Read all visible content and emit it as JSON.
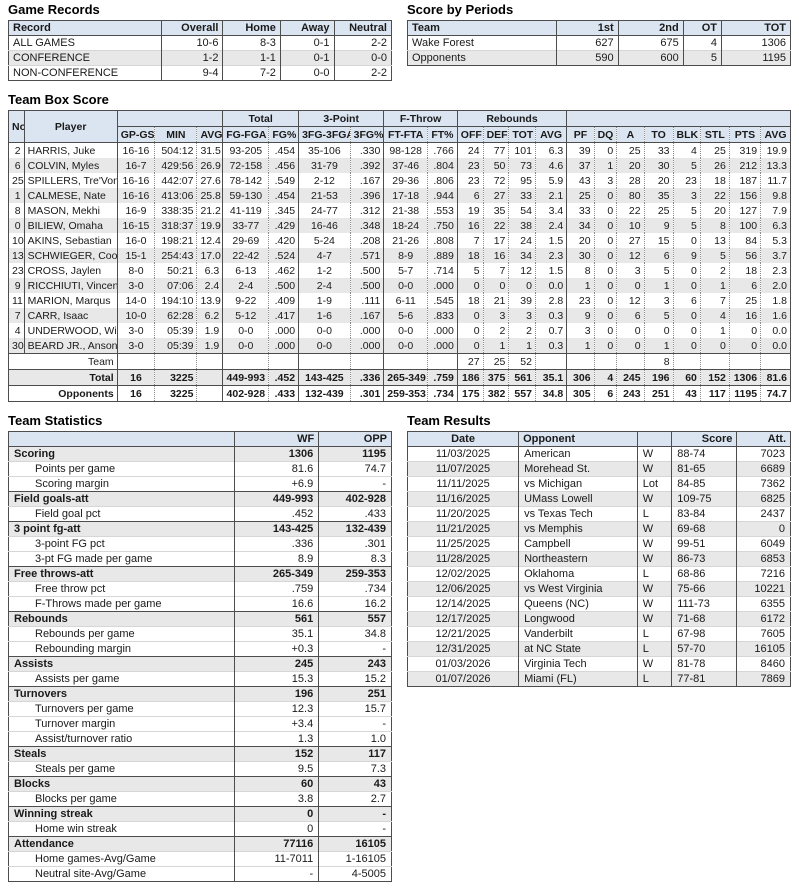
{
  "colors": {
    "header_bg": "#dbe5f1",
    "alt_row": "#e8e8e8",
    "border": "#4d4d4d"
  },
  "game_records": {
    "title": "Game Records",
    "columns": [
      "Record",
      "Overall",
      "Home",
      "Away",
      "Neutral"
    ],
    "rows": [
      [
        "ALL GAMES",
        "10-6",
        "8-3",
        "0-1",
        "2-2"
      ],
      [
        "CONFERENCE",
        "1-2",
        "1-1",
        "0-1",
        "0-0"
      ],
      [
        "NON-CONFERENCE",
        "9-4",
        "7-2",
        "0-0",
        "2-2"
      ]
    ]
  },
  "score_by_periods": {
    "title": "Score by Periods",
    "columns": [
      "Team",
      "1st",
      "2nd",
      "OT",
      "TOT"
    ],
    "rows": [
      [
        "Wake Forest",
        "627",
        "675",
        "4",
        "1306"
      ],
      [
        "Opponents",
        "590",
        "600",
        "5",
        "1195"
      ]
    ]
  },
  "box_score": {
    "title": "Team Box Score",
    "groups": {
      "total": "Total",
      "three_point": "3-Point",
      "f_throw": "F-Throw",
      "rebounds": "Rebounds"
    },
    "columns": [
      "No.",
      "Player",
      "GP-GS",
      "MIN",
      "AVG",
      "FG-FGA",
      "FG%",
      "3FG-3FGA",
      "3FG%",
      "FT-FTA",
      "FT%",
      "OFF",
      "DEF",
      "TOT",
      "AVG",
      "PF",
      "DQ",
      "A",
      "TO",
      "BLK",
      "STL",
      "PTS",
      "AVG"
    ],
    "rows": [
      [
        "2",
        "HARRIS, Juke",
        "16-16",
        "504:12",
        "31.5",
        "93-205",
        ".454",
        "35-106",
        ".330",
        "98-128",
        ".766",
        "24",
        "77",
        "101",
        "6.3",
        "39",
        "0",
        "25",
        "33",
        "4",
        "25",
        "319",
        "19.9"
      ],
      [
        "6",
        "COLVIN, Myles",
        "16-7",
        "429:56",
        "26.9",
        "72-158",
        ".456",
        "31-79",
        ".392",
        "37-46",
        ".804",
        "23",
        "50",
        "73",
        "4.6",
        "37",
        "1",
        "20",
        "30",
        "5",
        "26",
        "212",
        "13.3"
      ],
      [
        "25",
        "SPILLERS, Tre'Von",
        "16-16",
        "442:07",
        "27.6",
        "78-142",
        ".549",
        "2-12",
        ".167",
        "29-36",
        ".806",
        "23",
        "72",
        "95",
        "5.9",
        "43",
        "3",
        "28",
        "20",
        "23",
        "18",
        "187",
        "11.7"
      ],
      [
        "1",
        "CALMESE, Nate",
        "16-16",
        "413:06",
        "25.8",
        "59-130",
        ".454",
        "21-53",
        ".396",
        "17-18",
        ".944",
        "6",
        "27",
        "33",
        "2.1",
        "25",
        "0",
        "80",
        "35",
        "3",
        "22",
        "156",
        "9.8"
      ],
      [
        "8",
        "MASON, Mekhi",
        "16-9",
        "338:35",
        "21.2",
        "41-119",
        ".345",
        "24-77",
        ".312",
        "21-38",
        ".553",
        "19",
        "35",
        "54",
        "3.4",
        "33",
        "0",
        "22",
        "25",
        "5",
        "20",
        "127",
        "7.9"
      ],
      [
        "0",
        "BILIEW, Omaha",
        "16-15",
        "318:37",
        "19.9",
        "33-77",
        ".429",
        "16-46",
        ".348",
        "18-24",
        ".750",
        "16",
        "22",
        "38",
        "2.4",
        "34",
        "0",
        "10",
        "9",
        "5",
        "8",
        "100",
        "6.3"
      ],
      [
        "10",
        "AKINS, Sebastian",
        "16-0",
        "198:21",
        "12.4",
        "29-69",
        ".420",
        "5-24",
        ".208",
        "21-26",
        ".808",
        "7",
        "17",
        "24",
        "1.5",
        "20",
        "0",
        "27",
        "15",
        "0",
        "13",
        "84",
        "5.3"
      ],
      [
        "13",
        "SCHWIEGER, Cooper",
        "15-1",
        "254:43",
        "17.0",
        "22-42",
        ".524",
        "4-7",
        ".571",
        "8-9",
        ".889",
        "18",
        "16",
        "34",
        "2.3",
        "30",
        "0",
        "12",
        "6",
        "9",
        "5",
        "56",
        "3.7"
      ],
      [
        "23",
        "CROSS, Jaylen",
        "8-0",
        "50:21",
        "6.3",
        "6-13",
        ".462",
        "1-2",
        ".500",
        "5-7",
        ".714",
        "5",
        "7",
        "12",
        "1.5",
        "8",
        "0",
        "3",
        "5",
        "0",
        "2",
        "18",
        "2.3"
      ],
      [
        "9",
        "RICCHIUTI, Vincent",
        "3-0",
        "07:06",
        "2.4",
        "2-4",
        ".500",
        "2-4",
        ".500",
        "0-0",
        ".000",
        "0",
        "0",
        "0",
        "0.0",
        "1",
        "0",
        "0",
        "1",
        "0",
        "1",
        "6",
        "2.0"
      ],
      [
        "11",
        "MARION, Marqus",
        "14-0",
        "194:10",
        "13.9",
        "9-22",
        ".409",
        "1-9",
        ".111",
        "6-11",
        ".545",
        "18",
        "21",
        "39",
        "2.8",
        "23",
        "0",
        "12",
        "3",
        "6",
        "7",
        "25",
        "1.8"
      ],
      [
        "7",
        "CARR, Isaac",
        "10-0",
        "62:28",
        "6.2",
        "5-12",
        ".417",
        "1-6",
        ".167",
        "5-6",
        ".833",
        "0",
        "3",
        "3",
        "0.3",
        "9",
        "0",
        "6",
        "5",
        "0",
        "4",
        "16",
        "1.6"
      ],
      [
        "4",
        "UNDERWOOD, Will",
        "3-0",
        "05:39",
        "1.9",
        "0-0",
        ".000",
        "0-0",
        ".000",
        "0-0",
        ".000",
        "0",
        "2",
        "2",
        "0.7",
        "3",
        "0",
        "0",
        "0",
        "0",
        "1",
        "0",
        "0.0"
      ],
      [
        "30",
        "BEARD JR., Anson",
        "3-0",
        "05:39",
        "1.9",
        "0-0",
        ".000",
        "0-0",
        ".000",
        "0-0",
        ".000",
        "0",
        "1",
        "1",
        "0.3",
        "1",
        "0",
        "0",
        "1",
        "0",
        "0",
        "0",
        "0.0"
      ],
      {
        "cells": [
          "Team",
          "",
          "",
          "",
          "",
          "",
          "",
          "",
          "",
          "",
          "27",
          "25",
          "52",
          "",
          "",
          "",
          "",
          "8",
          "",
          "",
          "",
          ""
        ],
        "cls": "sep",
        "colspan": 2
      },
      {
        "cells": [
          "Total",
          "16",
          "3225",
          "",
          "449-993",
          ".452",
          "143-425",
          ".336",
          "265-349",
          ".759",
          "186",
          "375",
          "561",
          "35.1",
          "306",
          "4",
          "245",
          "196",
          "60",
          "152",
          "1306",
          "81.6"
        ],
        "cls": "sep total",
        "colspan": 2
      },
      {
        "cells": [
          "Opponents",
          "16",
          "3225",
          "",
          "402-928",
          ".433",
          "132-439",
          ".301",
          "259-353",
          ".734",
          "175",
          "382",
          "557",
          "34.8",
          "305",
          "6",
          "243",
          "251",
          "43",
          "117",
          "1195",
          "74.7"
        ],
        "cls": "sep total",
        "colspan": 2
      }
    ]
  },
  "team_statistics": {
    "title": "Team Statistics",
    "columns": [
      "",
      "WF",
      "OPP"
    ],
    "rows": [
      {
        "cells": [
          "Scoring",
          "1306",
          "1195"
        ],
        "cls": "cat"
      },
      {
        "cells": [
          "Points per game",
          "81.6",
          "74.7"
        ],
        "cls": "sub"
      },
      {
        "cells": [
          "Scoring margin",
          "+6.9",
          "-"
        ],
        "cls": "sub"
      },
      {
        "cells": [
          "Field goals-att",
          "449-993",
          "402-928"
        ],
        "cls": "cat"
      },
      {
        "cells": [
          "Field goal pct",
          ".452",
          ".433"
        ],
        "cls": "sub"
      },
      {
        "cells": [
          "3 point fg-att",
          "143-425",
          "132-439"
        ],
        "cls": "cat"
      },
      {
        "cells": [
          "3-point FG pct",
          ".336",
          ".301"
        ],
        "cls": "sub"
      },
      {
        "cells": [
          "3-pt FG made per game",
          "8.9",
          "8.3"
        ],
        "cls": "sub"
      },
      {
        "cells": [
          "Free throws-att",
          "265-349",
          "259-353"
        ],
        "cls": "cat"
      },
      {
        "cells": [
          "Free throw pct",
          ".759",
          ".734"
        ],
        "cls": "sub"
      },
      {
        "cells": [
          "F-Throws made per game",
          "16.6",
          "16.2"
        ],
        "cls": "sub"
      },
      {
        "cells": [
          "Rebounds",
          "561",
          "557"
        ],
        "cls": "cat"
      },
      {
        "cells": [
          "Rebounds per game",
          "35.1",
          "34.8"
        ],
        "cls": "sub"
      },
      {
        "cells": [
          "Rebounding margin",
          "+0.3",
          "-"
        ],
        "cls": "sub"
      },
      {
        "cells": [
          "Assists",
          "245",
          "243"
        ],
        "cls": "cat"
      },
      {
        "cells": [
          "Assists per game",
          "15.3",
          "15.2"
        ],
        "cls": "sub"
      },
      {
        "cells": [
          "Turnovers",
          "196",
          "251"
        ],
        "cls": "cat"
      },
      {
        "cells": [
          "Turnovers per game",
          "12.3",
          "15.7"
        ],
        "cls": "sub"
      },
      {
        "cells": [
          "Turnover margin",
          "+3.4",
          "-"
        ],
        "cls": "sub"
      },
      {
        "cells": [
          "Assist/turnover ratio",
          "1.3",
          "1.0"
        ],
        "cls": "sub"
      },
      {
        "cells": [
          "Steals",
          "152",
          "117"
        ],
        "cls": "cat"
      },
      {
        "cells": [
          "Steals per game",
          "9.5",
          "7.3"
        ],
        "cls": "sub"
      },
      {
        "cells": [
          "Blocks",
          "60",
          "43"
        ],
        "cls": "cat"
      },
      {
        "cells": [
          "Blocks per game",
          "3.8",
          "2.7"
        ],
        "cls": "sub"
      },
      {
        "cells": [
          "Winning streak",
          "0",
          "-"
        ],
        "cls": "cat"
      },
      {
        "cells": [
          "Home win streak",
          "0",
          "-"
        ],
        "cls": "sub"
      },
      {
        "cells": [
          "Attendance",
          "77116",
          "16105"
        ],
        "cls": "cat"
      },
      {
        "cells": [
          "Home games-Avg/Game",
          "11-7011",
          "1-16105"
        ],
        "cls": "sub"
      },
      {
        "cells": [
          "Neutral site-Avg/Game",
          "-",
          "4-5005"
        ],
        "cls": "sub"
      }
    ]
  },
  "team_results": {
    "title": "Team Results",
    "columns": [
      "Date",
      "Opponent",
      "",
      "Score",
      "Att."
    ],
    "rows": [
      [
        "11/03/2025",
        "American",
        "W",
        "88-74",
        "7023"
      ],
      [
        "11/07/2025",
        "Morehead St.",
        "W",
        "81-65",
        "6689"
      ],
      [
        "11/11/2025",
        "vs Michigan",
        "Lot",
        "84-85",
        "7362"
      ],
      [
        "11/16/2025",
        "UMass Lowell",
        "W",
        "109-75",
        "6825"
      ],
      [
        "11/20/2025",
        "vs Texas Tech",
        "L",
        "83-84",
        "2437"
      ],
      [
        "11/21/2025",
        "vs Memphis",
        "W",
        "69-68",
        "0"
      ],
      [
        "11/25/2025",
        "Campbell",
        "W",
        "99-51",
        "6049"
      ],
      [
        "11/28/2025",
        "Northeastern",
        "W",
        "86-73",
        "6853"
      ],
      [
        "12/02/2025",
        "Oklahoma",
        "L",
        "68-86",
        "7216"
      ],
      [
        "12/06/2025",
        "vs West Virginia",
        "W",
        "75-66",
        "10221"
      ],
      [
        "12/14/2025",
        "Queens (NC)",
        "W",
        "111-73",
        "6355"
      ],
      [
        "12/17/2025",
        "Longwood",
        "W",
        "71-68",
        "6172"
      ],
      [
        "12/21/2025",
        "Vanderbilt",
        "L",
        "67-98",
        "7605"
      ],
      [
        "12/31/2025",
        "at NC State",
        "L",
        "57-70",
        "16105"
      ],
      [
        "01/03/2026",
        "Virginia Tech",
        "W",
        "81-78",
        "8460"
      ],
      [
        "01/07/2026",
        "Miami (FL)",
        "L",
        "77-81",
        "7869"
      ]
    ]
  }
}
